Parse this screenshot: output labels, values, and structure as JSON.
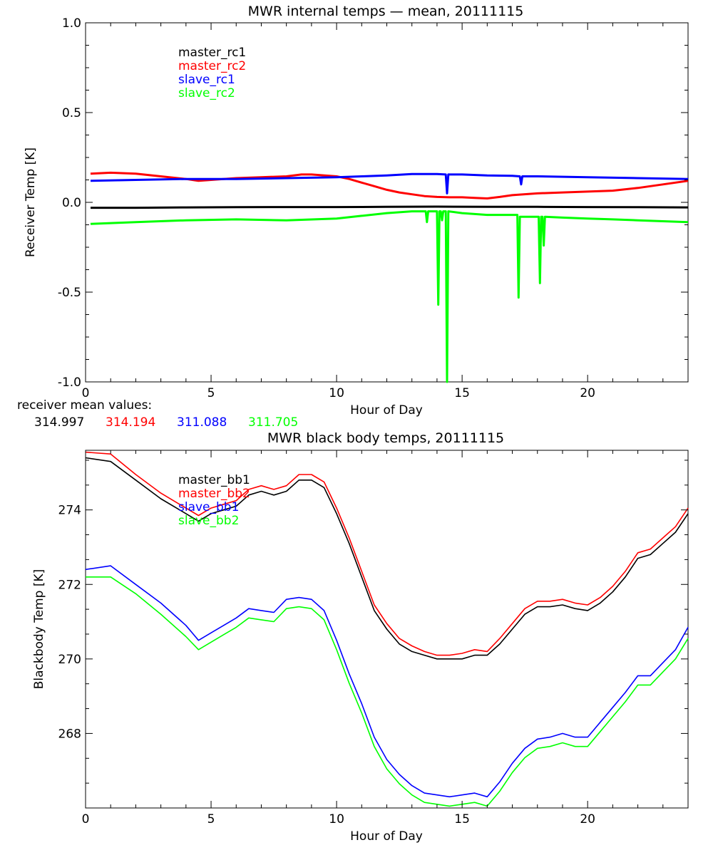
{
  "chart_data": [
    {
      "type": "line",
      "title": "MWR internal temps — mean, 20111115",
      "xlabel": "Hour of Day",
      "ylabel": "Receiver Temp [K]",
      "xlim": [
        0,
        24
      ],
      "ylim": [
        -1.0,
        1.0
      ],
      "xticks": [
        0,
        5,
        10,
        15,
        20
      ],
      "yticks": [
        -1.0,
        -0.5,
        0.0,
        0.5,
        1.0
      ],
      "ytick_labels": [
        "-1.0",
        "-0.5",
        "0.0",
        "0.5",
        "1.0"
      ],
      "legend": "top-left",
      "series": [
        {
          "name": "master_rc1",
          "color": "#000000",
          "x": [
            0.2,
            2,
            4,
            6,
            8,
            10,
            12,
            14,
            16,
            18,
            20,
            22,
            24
          ],
          "y": [
            -0.03,
            -0.03,
            -0.028,
            -0.027,
            -0.026,
            -0.026,
            -0.025,
            -0.024,
            -0.025,
            -0.025,
            -0.026,
            -0.027,
            -0.028
          ]
        },
        {
          "name": "master_rc2",
          "color": "#ff0000",
          "x": [
            0.2,
            1,
            2,
            3,
            4,
            4.5,
            5,
            6,
            7,
            8,
            8.6,
            9,
            10,
            10.5,
            11,
            11.5,
            12,
            12.5,
            13,
            13.5,
            14,
            14.5,
            15,
            15.5,
            16,
            16.5,
            17,
            18,
            19,
            20,
            21,
            22,
            23,
            24
          ],
          "y": [
            0.16,
            0.165,
            0.16,
            0.145,
            0.13,
            0.12,
            0.125,
            0.135,
            0.14,
            0.145,
            0.155,
            0.155,
            0.145,
            0.13,
            0.11,
            0.09,
            0.07,
            0.055,
            0.045,
            0.035,
            0.03,
            0.028,
            0.028,
            0.025,
            0.022,
            0.03,
            0.04,
            0.05,
            0.055,
            0.06,
            0.065,
            0.08,
            0.1,
            0.12
          ]
        },
        {
          "name": "slave_rc1",
          "color": "#0000ff",
          "x": [
            0.2,
            2,
            4,
            6,
            8,
            10,
            11,
            12,
            13,
            14,
            14.35,
            14.4,
            14.45,
            15,
            16,
            17,
            17.3,
            17.35,
            17.4,
            18,
            20,
            22,
            24
          ],
          "y": [
            0.12,
            0.125,
            0.13,
            0.13,
            0.135,
            0.14,
            0.145,
            0.15,
            0.158,
            0.158,
            0.155,
            0.05,
            0.155,
            0.155,
            0.15,
            0.148,
            0.145,
            0.1,
            0.145,
            0.145,
            0.14,
            0.135,
            0.13
          ]
        },
        {
          "name": "slave_rc2",
          "color": "#00ff00",
          "x": [
            0.2,
            2,
            4,
            6,
            8,
            10,
            11,
            12,
            13,
            13.55,
            13.6,
            13.65,
            14.0,
            14.05,
            14.1,
            14.15,
            14.2,
            14.25,
            14.35,
            14.4,
            14.45,
            15,
            16,
            17.2,
            17.25,
            17.3,
            18.05,
            18.1,
            18.15,
            18.2,
            18.25,
            18.3,
            19,
            20,
            21,
            22,
            23,
            24
          ],
          "y": [
            -0.12,
            -0.11,
            -0.1,
            -0.095,
            -0.1,
            -0.09,
            -0.075,
            -0.06,
            -0.05,
            -0.05,
            -0.11,
            -0.05,
            -0.05,
            -0.57,
            -0.05,
            -0.05,
            -0.1,
            -0.05,
            -0.05,
            -1.0,
            -0.05,
            -0.06,
            -0.07,
            -0.07,
            -0.53,
            -0.08,
            -0.08,
            -0.45,
            -0.08,
            -0.08,
            -0.24,
            -0.08,
            -0.085,
            -0.09,
            -0.095,
            -0.1,
            -0.105,
            -0.11
          ]
        }
      ],
      "annotation": {
        "label": "receiver mean values:",
        "values": [
          "314.997",
          "314.194",
          "311.088",
          "311.705"
        ],
        "colors": [
          "#000000",
          "#ff0000",
          "#0000ff",
          "#00ff00"
        ]
      }
    },
    {
      "type": "line",
      "title": "MWR black body temps, 20111115",
      "xlabel": "Hour of Day",
      "ylabel": "Blackbody Temp [K]",
      "xlim": [
        0,
        24
      ],
      "ylim": [
        266.0,
        275.6
      ],
      "xticks": [
        0,
        5,
        10,
        15,
        20
      ],
      "yticks": [
        268,
        270,
        272,
        274
      ],
      "ytick_labels": [
        "268",
        "270",
        "272",
        "274"
      ],
      "legend": "top-left",
      "series": [
        {
          "name": "master_bb1",
          "color": "#000000",
          "x": [
            0,
            1,
            2,
            3,
            4,
            4.5,
            5,
            5.5,
            6,
            6.5,
            7,
            7.5,
            8,
            8.5,
            9,
            9.5,
            10,
            10.5,
            11,
            11.5,
            12,
            12.5,
            13,
            13.5,
            14,
            14.5,
            15,
            15.5,
            16,
            16.5,
            17,
            17.5,
            18,
            18.5,
            19,
            19.5,
            20,
            20.5,
            21,
            21.5,
            22,
            22.5,
            23,
            23.5,
            24
          ],
          "y": [
            275.4,
            275.3,
            274.8,
            274.3,
            273.9,
            273.7,
            273.9,
            274.0,
            274.1,
            274.4,
            274.5,
            274.4,
            274.5,
            274.8,
            274.8,
            274.6,
            273.9,
            273.1,
            272.2,
            271.3,
            270.8,
            270.4,
            270.2,
            270.1,
            270.0,
            270.0,
            270.0,
            270.1,
            270.1,
            270.4,
            270.8,
            271.2,
            271.4,
            271.4,
            271.45,
            271.35,
            271.3,
            271.5,
            271.8,
            272.2,
            272.7,
            272.8,
            273.1,
            273.4,
            273.9
          ]
        },
        {
          "name": "master_bb2",
          "color": "#ff0000",
          "x": [
            0,
            1,
            2,
            3,
            4,
            4.5,
            5,
            5.5,
            6,
            6.5,
            7,
            7.5,
            8,
            8.5,
            9,
            9.5,
            10,
            10.5,
            11,
            11.5,
            12,
            12.5,
            13,
            13.5,
            14,
            14.5,
            15,
            15.5,
            16,
            16.5,
            17,
            17.5,
            18,
            18.5,
            19,
            19.5,
            20,
            20.5,
            21,
            21.5,
            22,
            22.5,
            23,
            23.5,
            24
          ],
          "y": [
            275.55,
            275.5,
            274.95,
            274.45,
            274.05,
            273.85,
            274.05,
            274.15,
            274.25,
            274.55,
            274.65,
            274.55,
            274.65,
            274.95,
            274.95,
            274.75,
            274.05,
            273.25,
            272.35,
            271.45,
            270.95,
            270.55,
            270.35,
            270.2,
            270.1,
            270.1,
            270.15,
            270.25,
            270.2,
            270.55,
            270.95,
            271.35,
            271.55,
            271.55,
            271.6,
            271.5,
            271.45,
            271.65,
            271.95,
            272.35,
            272.85,
            272.95,
            273.25,
            273.55,
            274.05
          ]
        },
        {
          "name": "slave_bb1",
          "color": "#0000ff",
          "x": [
            0,
            1,
            2,
            3,
            4,
            4.5,
            5,
            5.5,
            6,
            6.5,
            7,
            7.5,
            8,
            8.5,
            9,
            9.5,
            10,
            10.5,
            11,
            11.5,
            12,
            12.5,
            13,
            13.5,
            14,
            14.5,
            15,
            15.5,
            16,
            16.5,
            17,
            17.5,
            18,
            18.5,
            19,
            19.5,
            20,
            20.5,
            21,
            21.5,
            22,
            22.5,
            23,
            23.5,
            24
          ],
          "y": [
            272.4,
            272.5,
            272.0,
            271.5,
            270.9,
            270.5,
            270.7,
            270.9,
            271.1,
            271.35,
            271.3,
            271.25,
            271.6,
            271.65,
            271.6,
            271.3,
            270.5,
            269.6,
            268.8,
            267.9,
            267.3,
            266.9,
            266.6,
            266.4,
            266.35,
            266.3,
            266.35,
            266.4,
            266.3,
            266.7,
            267.2,
            267.6,
            267.85,
            267.9,
            268.0,
            267.9,
            267.9,
            268.3,
            268.7,
            269.1,
            269.55,
            269.55,
            269.9,
            270.25,
            270.85
          ]
        },
        {
          "name": "slave_bb2",
          "color": "#00ff00",
          "x": [
            0,
            1,
            2,
            3,
            4,
            4.5,
            5,
            5.5,
            6,
            6.5,
            7,
            7.5,
            8,
            8.5,
            9,
            9.5,
            10,
            10.5,
            11,
            11.5,
            12,
            12.5,
            13,
            13.5,
            14,
            14.5,
            15,
            15.5,
            16,
            16.5,
            17,
            17.5,
            18,
            18.5,
            19,
            19.5,
            20,
            20.5,
            21,
            21.5,
            22,
            22.5,
            23,
            23.5,
            24
          ],
          "y": [
            272.2,
            272.2,
            271.75,
            271.2,
            270.6,
            270.25,
            270.45,
            270.65,
            270.85,
            271.1,
            271.05,
            271.0,
            271.35,
            271.4,
            271.35,
            271.05,
            270.25,
            269.35,
            268.55,
            267.65,
            267.05,
            266.65,
            266.35,
            266.15,
            266.1,
            266.05,
            266.1,
            266.15,
            266.05,
            266.45,
            266.95,
            267.35,
            267.6,
            267.65,
            267.75,
            267.65,
            267.65,
            268.05,
            268.45,
            268.85,
            269.3,
            269.3,
            269.65,
            270.0,
            270.55
          ]
        }
      ]
    }
  ]
}
